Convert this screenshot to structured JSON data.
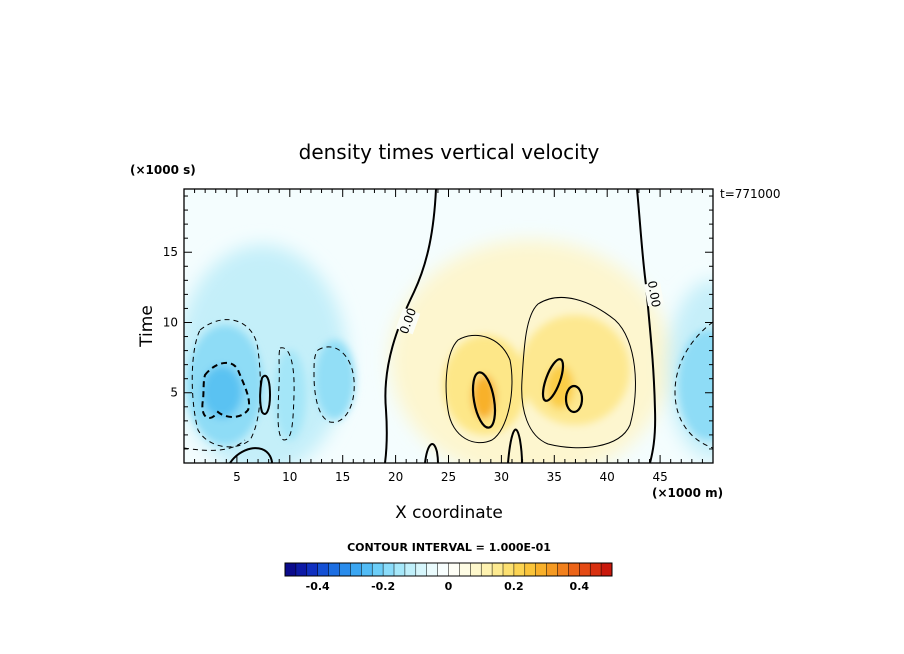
{
  "chart_data": {
    "type": "heatmap",
    "title": "density times vertical velocity",
    "xlabel": "X coordinate",
    "ylabel": "Time",
    "x_unit_label": "(×1000 m)",
    "y_unit_label": "(×1000 s)",
    "timestamp": "t=771000",
    "xlim": [
      0,
      50
    ],
    "ylim": [
      0,
      19.5
    ],
    "x_ticks": [
      5,
      10,
      15,
      20,
      25,
      30,
      35,
      40,
      45
    ],
    "y_ticks": [
      5,
      10,
      15
    ],
    "contour_labels": [
      "0.00",
      "0.00"
    ],
    "contour_interval_text": "CONTOUR INTERVAL = 1.000E-01",
    "colorbar": {
      "min": -0.5,
      "max": 0.5,
      "ticks": [
        -0.4,
        -0.2,
        0,
        0.2,
        0.4
      ],
      "tick_labels": [
        "-0.4",
        "-0.2",
        "0",
        "0.2",
        "0.4"
      ],
      "colors": [
        "#0b0b8c",
        "#0d1aa6",
        "#1030c0",
        "#1450d4",
        "#1c6ee2",
        "#2a8cec",
        "#3aa6f2",
        "#52bcf6",
        "#6ccef8",
        "#8adcfa",
        "#a6e8fa",
        "#c0f0fb",
        "#d6f6fc",
        "#eafbfd",
        "#f8fefe",
        "#fefef6",
        "#fefce4",
        "#fef8cc",
        "#fef2b0",
        "#fdea90",
        "#fce070",
        "#fcd452",
        "#fac43a",
        "#f8b02a",
        "#f59a22",
        "#f2801c",
        "#ec6418",
        "#e44a14",
        "#d83010",
        "#c8180c"
      ]
    },
    "features": [
      {
        "name": "negative core left",
        "x": 5,
        "y": 5,
        "value": -0.3
      },
      {
        "name": "negative band",
        "x": 10,
        "y": 6,
        "value": -0.15
      },
      {
        "name": "negative band",
        "x": 14.5,
        "y": 5,
        "value": -0.18
      },
      {
        "name": "negative edge right",
        "x": 49,
        "y": 6,
        "value": -0.2
      },
      {
        "name": "positive core",
        "x": 28.5,
        "y": 5,
        "value": 0.3
      },
      {
        "name": "positive core",
        "x": 35.5,
        "y": 5.5,
        "value": 0.25
      }
    ]
  }
}
